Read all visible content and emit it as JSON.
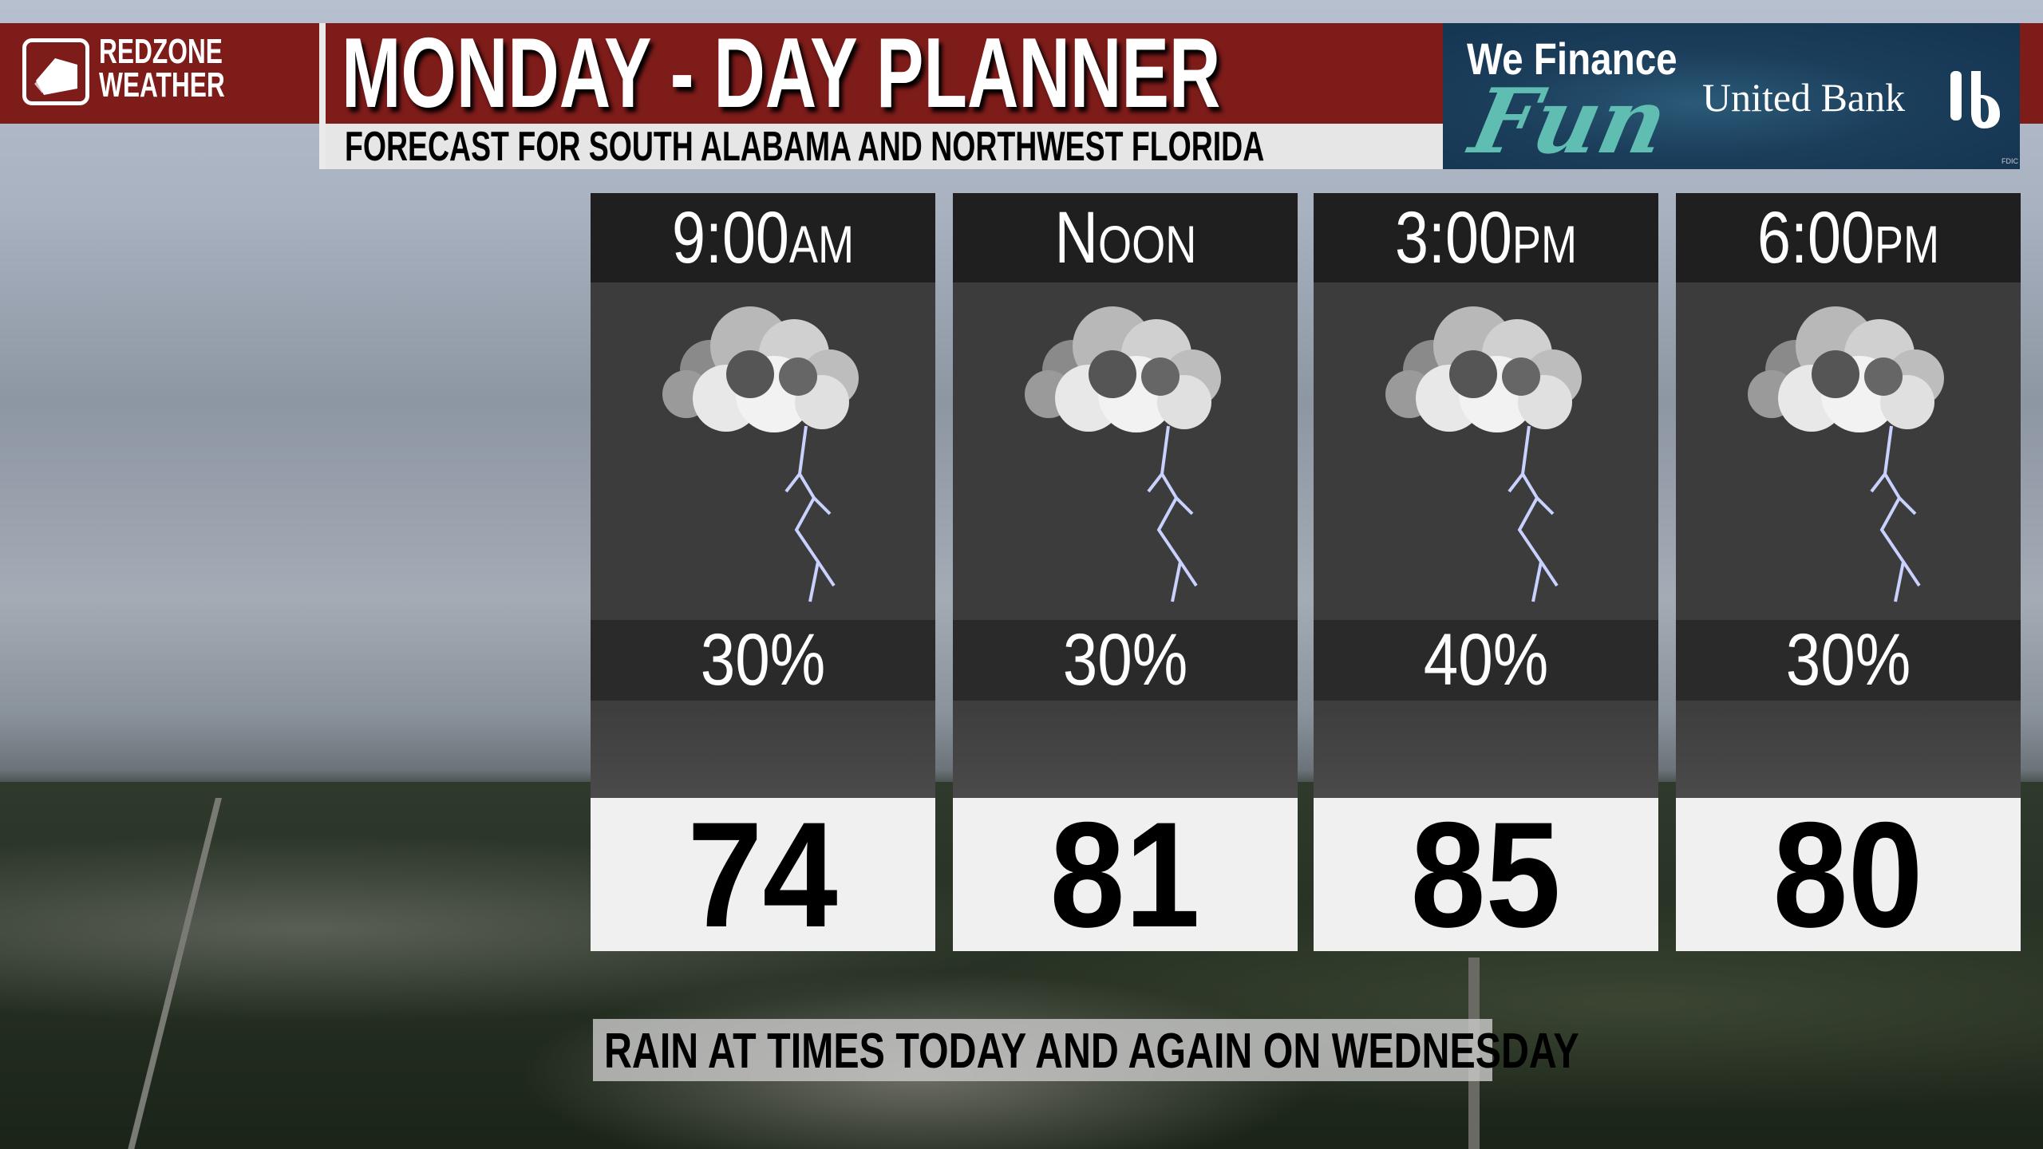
{
  "brand": {
    "line1": "REDZONE",
    "line2": "WEATHER"
  },
  "header": {
    "title": "MONDAY - DAY PLANNER",
    "subtitle": "FORECAST FOR SOUTH ALABAMA AND NORTHWEST FLORIDA"
  },
  "sponsor": {
    "tagline_top": "We Finance",
    "tagline_script": "Fun",
    "bank": "United Bank",
    "fdic": "FDIC"
  },
  "colors": {
    "brand_red": "#7e1c1a",
    "sponsor_blue": "#143451",
    "sponsor_teal": "#5fbdb2"
  },
  "forecast": [
    {
      "time": "9:00",
      "suffix": "AM",
      "icon": "thunderstorm-icon",
      "precip": "30%",
      "temp": "74"
    },
    {
      "time": "N",
      "suffix": "OON",
      "icon": "thunderstorm-icon",
      "precip": "30%",
      "temp": "81"
    },
    {
      "time": "3:00",
      "suffix": "PM",
      "icon": "thunderstorm-icon",
      "precip": "40%",
      "temp": "85"
    },
    {
      "time": "6:00",
      "suffix": "PM",
      "icon": "thunderstorm-icon",
      "precip": "30%",
      "temp": "80"
    }
  ],
  "footer": {
    "note": "RAIN AT TIMES TODAY AND AGAIN ON WEDNESDAY"
  }
}
